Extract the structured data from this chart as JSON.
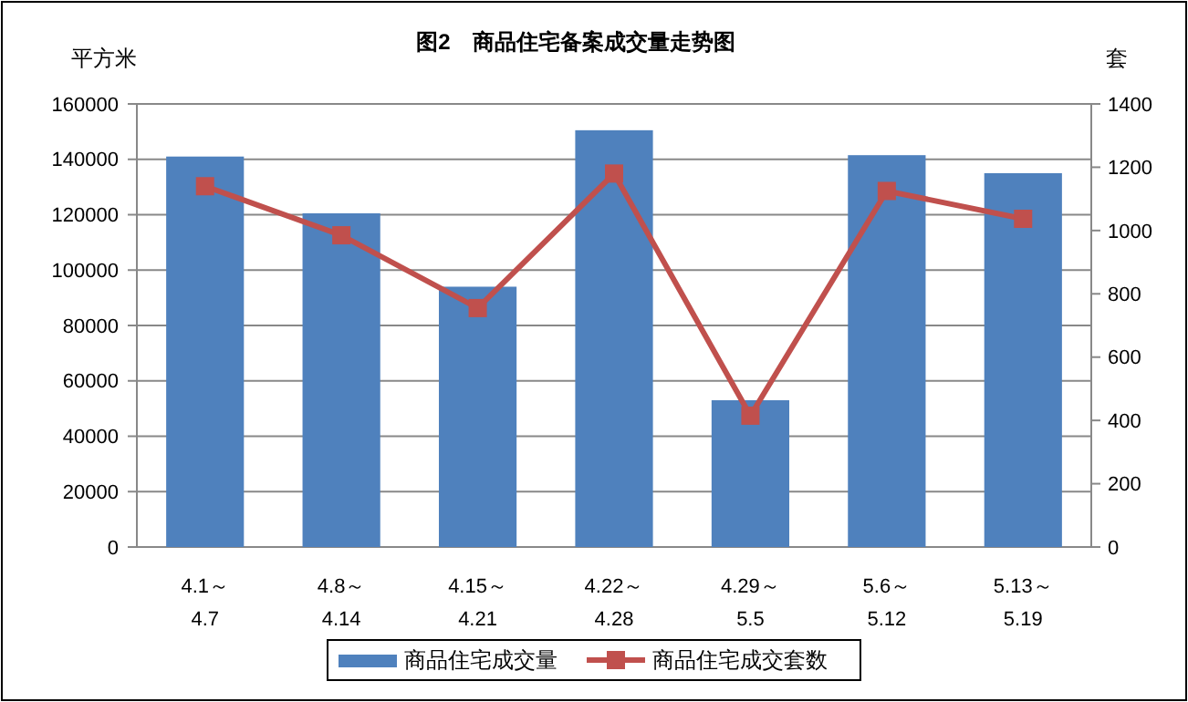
{
  "chart_data": {
    "type": "bar",
    "title": "图2　商品住宅备案成交量走势图",
    "ylabel": "平方米",
    "y2label": "套",
    "categories": [
      "4.1～\n4.7",
      "4.8～\n4.14",
      "4.15～\n4.21",
      "4.22～\n4.28",
      "4.29～\n5.5",
      "5.6～\n5.12",
      "5.13～\n5.19"
    ],
    "series": [
      {
        "name": "商品住宅成交量",
        "color": "#4f81bd",
        "values": [
          141000,
          120500,
          94000,
          150500,
          53000,
          141500,
          135000
        ]
      },
      {
        "name": "商品住宅成交套数",
        "type": "line",
        "axis": "y2",
        "color": "#c0504d",
        "marker": "square",
        "values": [
          1140,
          985,
          755,
          1180,
          415,
          1125,
          1037
        ]
      }
    ],
    "ylim": [
      0,
      160000
    ],
    "yticks": [
      0,
      20000,
      40000,
      60000,
      80000,
      100000,
      120000,
      140000,
      160000
    ],
    "y2lim": [
      0,
      1400
    ],
    "y2ticks": [
      0,
      200,
      400,
      600,
      800,
      1000,
      1200,
      1400
    ],
    "grid": "y",
    "legend": "bottom"
  }
}
